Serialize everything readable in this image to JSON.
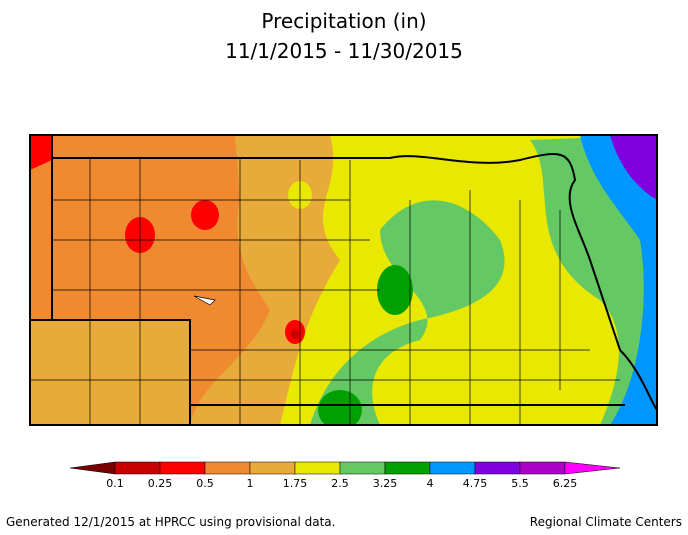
{
  "title": "Precipitation (in)",
  "subtitle": "11/1/2015 - 11/30/2015",
  "legend": {
    "labels": [
      0.1,
      0.25,
      0.5,
      1,
      1.75,
      2.5,
      3.25,
      4,
      4.75,
      5.5,
      6.25
    ],
    "colors": [
      "#7a0000",
      "#c80000",
      "#ff0000",
      "#f08a30",
      "#e8aa38",
      "#e8e800",
      "#64c864",
      "#00a000",
      "#0096ff",
      "#8000e0",
      "#aa00c8",
      "#ff00ff"
    ]
  },
  "footer": {
    "left": "Generated 12/1/2015 at HPRCC using provisional data.",
    "right": "Regional Climate Centers"
  }
}
